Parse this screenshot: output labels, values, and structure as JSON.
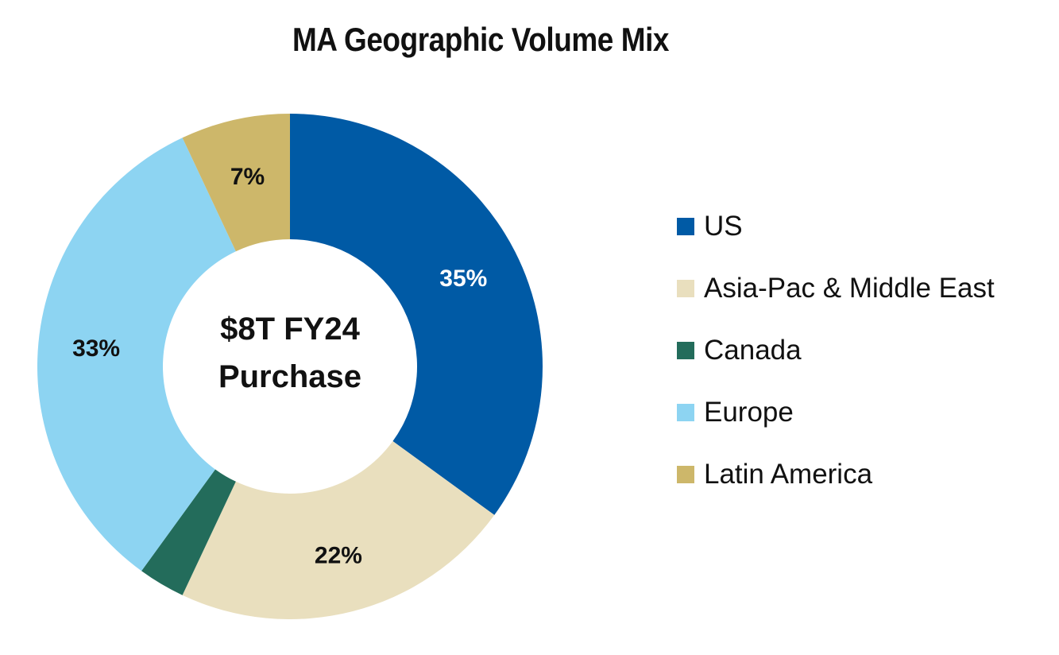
{
  "chart_data": {
    "type": "pie",
    "style": "donut",
    "title": "MA Geographic Volume Mix",
    "center_text": [
      "$8T FY24",
      "Purchase"
    ],
    "slices": [
      {
        "name": "US",
        "value": 35,
        "label": "35%",
        "color": "#005AA5",
        "label_color": "#ffffff"
      },
      {
        "name": "Asia-Pac & Middle East",
        "value": 22,
        "label": "22%",
        "color": "#E9DFBE",
        "label_color": "#111111"
      },
      {
        "name": "Canada",
        "value": 3,
        "label": "",
        "color": "#236C5B",
        "label_color": "#111111"
      },
      {
        "name": "Europe",
        "value": 33,
        "label": "33%",
        "color": "#8DD4F2",
        "label_color": "#111111"
      },
      {
        "name": "Latin America",
        "value": 7,
        "label": "7%",
        "color": "#CDB76A",
        "label_color": "#111111"
      }
    ],
    "legend": {
      "position": "right",
      "items": [
        {
          "name": "US",
          "color": "#005AA5"
        },
        {
          "name": "Asia-Pac & Middle East",
          "color": "#E9DFBE"
        },
        {
          "name": "Canada",
          "color": "#236C5B"
        },
        {
          "name": "Europe",
          "color": "#8DD4F2"
        },
        {
          "name": "Latin America",
          "color": "#CDB76A"
        }
      ]
    }
  }
}
